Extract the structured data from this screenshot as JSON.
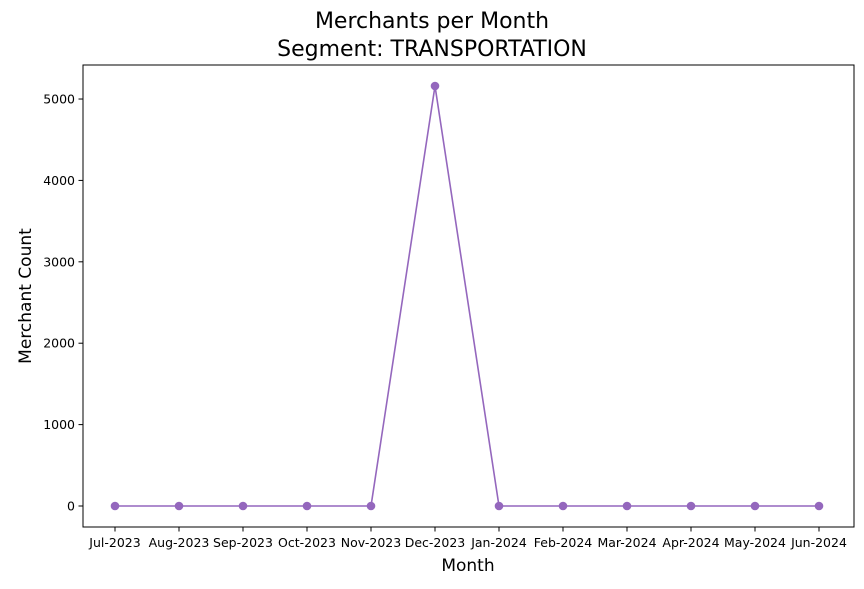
{
  "chart_data": {
    "type": "line",
    "title_line1": "Merchants per Month",
    "title_line2": "Segment: TRANSPORTATION",
    "xlabel": "Month",
    "ylabel": "Merchant Count",
    "categories": [
      "Jul-2023",
      "Aug-2023",
      "Sep-2023",
      "Oct-2023",
      "Nov-2023",
      "Dec-2023",
      "Jan-2024",
      "Feb-2024",
      "Mar-2024",
      "Apr-2024",
      "May-2024",
      "Jun-2024"
    ],
    "values": [
      0,
      0,
      0,
      0,
      0,
      5160,
      0,
      0,
      0,
      0,
      0,
      0
    ],
    "ylim": [
      -258,
      5418
    ],
    "yticks": [
      0,
      1000,
      2000,
      3000,
      4000,
      5000
    ],
    "ytick_labels": [
      "0",
      "1000",
      "2000",
      "3000",
      "4000",
      "5000"
    ],
    "grid": false,
    "legend": "none",
    "line_color": "#9467bd",
    "marker": "circle"
  }
}
